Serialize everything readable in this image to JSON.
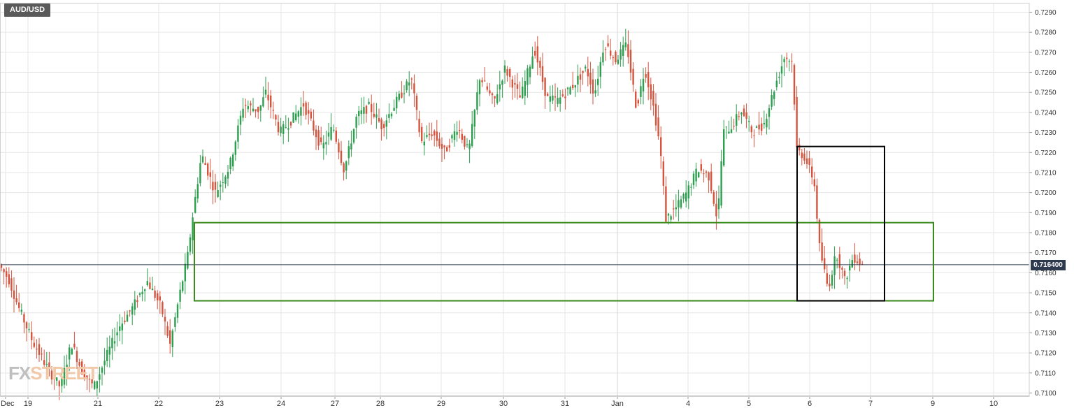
{
  "symbol": "AUD/USD",
  "current_price_label": "0.716400",
  "watermark": {
    "part1": "FX",
    "part2": "STREET"
  },
  "colors": {
    "up": "#2e9e4f",
    "down": "#d6533d",
    "current_price_line": "#2e3a4d",
    "support_zone": "#3a8a1e",
    "focus_box": "#000000",
    "grid": "#e6e6e6"
  },
  "chart_data": {
    "type": "candlestick",
    "title": "AUD/USD",
    "ylim": [
      0.71,
      0.729
    ],
    "y_ticks": [
      "0.7100",
      "0.7110",
      "0.7120",
      "0.7130",
      "0.7140",
      "0.7150",
      "0.7160",
      "0.7170",
      "0.7180",
      "0.7190",
      "0.7200",
      "0.7210",
      "0.7220",
      "0.7230",
      "0.7240",
      "0.7250",
      "0.7260",
      "0.7270",
      "0.7280",
      "0.7290"
    ],
    "x_ticks": [
      "Dec",
      "19",
      "21",
      "22",
      "23",
      "24",
      "27",
      "28",
      "29",
      "30",
      "31",
      "Jan",
      "4",
      "5",
      "6",
      "7",
      "9",
      "10"
    ],
    "current_price": 0.7164,
    "price_path": [
      [
        0,
        0.7164
      ],
      [
        14,
        0.7157
      ],
      [
        28,
        0.7143
      ],
      [
        48,
        0.7126
      ],
      [
        72,
        0.7111
      ],
      [
        88,
        0.7103
      ],
      [
        104,
        0.7125
      ],
      [
        120,
        0.711
      ],
      [
        136,
        0.7103
      ],
      [
        156,
        0.712
      ],
      [
        172,
        0.7133
      ],
      [
        192,
        0.7143
      ],
      [
        212,
        0.7156
      ],
      [
        232,
        0.7143
      ],
      [
        245,
        0.7124
      ],
      [
        258,
        0.7148
      ],
      [
        270,
        0.7168
      ],
      [
        278,
        0.719
      ],
      [
        290,
        0.7219
      ],
      [
        310,
        0.72
      ],
      [
        330,
        0.7213
      ],
      [
        350,
        0.7244
      ],
      [
        372,
        0.7241
      ],
      [
        382,
        0.725
      ],
      [
        402,
        0.723
      ],
      [
        418,
        0.7236
      ],
      [
        436,
        0.7244
      ],
      [
        462,
        0.7222
      ],
      [
        478,
        0.7233
      ],
      [
        494,
        0.7211
      ],
      [
        512,
        0.7238
      ],
      [
        530,
        0.7243
      ],
      [
        548,
        0.7233
      ],
      [
        568,
        0.7245
      ],
      [
        590,
        0.7257
      ],
      [
        604,
        0.7225
      ],
      [
        620,
        0.723
      ],
      [
        638,
        0.722
      ],
      [
        656,
        0.7233
      ],
      [
        672,
        0.722
      ],
      [
        688,
        0.7258
      ],
      [
        708,
        0.7245
      ],
      [
        724,
        0.7262
      ],
      [
        746,
        0.7247
      ],
      [
        766,
        0.7272
      ],
      [
        784,
        0.7247
      ],
      [
        800,
        0.7246
      ],
      [
        820,
        0.7253
      ],
      [
        840,
        0.7262
      ],
      [
        852,
        0.7249
      ],
      [
        866,
        0.7275
      ],
      [
        882,
        0.7266
      ],
      [
        898,
        0.7274
      ],
      [
        912,
        0.7242
      ],
      [
        924,
        0.7262
      ],
      [
        938,
        0.724
      ],
      [
        946,
        0.7222
      ],
      [
        954,
        0.7187
      ],
      [
        968,
        0.7192
      ],
      [
        984,
        0.72
      ],
      [
        1000,
        0.7212
      ],
      [
        1016,
        0.7208
      ],
      [
        1028,
        0.7186
      ],
      [
        1036,
        0.723
      ],
      [
        1048,
        0.7233
      ],
      [
        1062,
        0.7241
      ],
      [
        1078,
        0.723
      ],
      [
        1094,
        0.7234
      ],
      [
        1110,
        0.7253
      ],
      [
        1124,
        0.7268
      ],
      [
        1136,
        0.7265
      ],
      [
        1140,
        0.7222
      ],
      [
        1152,
        0.7218
      ],
      [
        1166,
        0.7206
      ],
      [
        1174,
        0.7172
      ],
      [
        1186,
        0.7152
      ],
      [
        1198,
        0.717
      ],
      [
        1210,
        0.7156
      ],
      [
        1222,
        0.7168
      ],
      [
        1236,
        0.7164
      ]
    ],
    "annotations": [
      {
        "type": "zone",
        "label": "support zone",
        "price_top": 0.7185,
        "price_bottom": 0.7146,
        "from": "22",
        "to": "9"
      },
      {
        "type": "box",
        "label": "focus box",
        "price_top": 0.7223,
        "price_bottom": 0.7146,
        "from": "6",
        "to": "7"
      }
    ]
  }
}
